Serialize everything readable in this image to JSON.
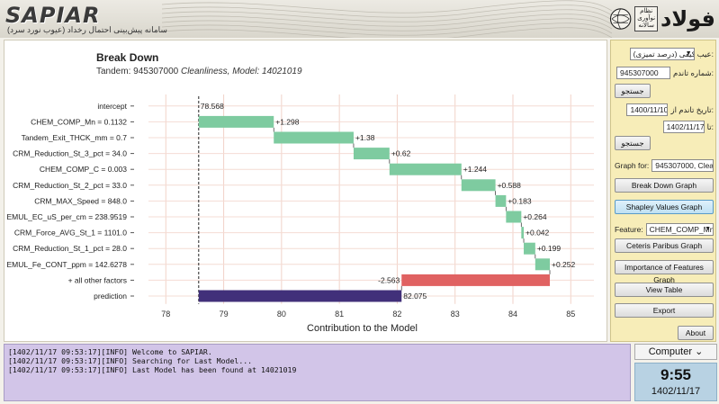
{
  "header": {
    "logo": "SAPIAR",
    "subtitle": "سامانه پیش‌بینی احتمال رخداد (عیوب نورد سرد)",
    "brand_tag": "نظام نوآوری سالانه",
    "brand_mark": "فولاد"
  },
  "chart_data": {
    "type": "waterfall-bar",
    "title": "Break Down",
    "subtitle_prefix": "Tandem: 945307000",
    "subtitle_italic": "Cleanliness, Model: 14021019",
    "xlabel": "Contribution to the Model",
    "xlim": [
      77.7,
      85.4
    ],
    "xticks": [
      78,
      79,
      80,
      81,
      82,
      83,
      84,
      85
    ],
    "intercept": 78.568,
    "colors": {
      "positive": "#7ecba0",
      "negative": "#e06262",
      "prediction": "#41307a"
    },
    "rows": [
      {
        "label": "intercept",
        "kind": "intercept",
        "value": 78.568,
        "text": "78.568"
      },
      {
        "label": "CHEM_COMP_Mn = 0.1132",
        "kind": "contrib",
        "value": 1.298,
        "text": "+1.298"
      },
      {
        "label": "Tandem_Exit_THCK_mm = 0.7",
        "kind": "contrib",
        "value": 1.38,
        "text": "+1.38"
      },
      {
        "label": "CRM_Reduction_St_3_pct = 34.0",
        "kind": "contrib",
        "value": 0.62,
        "text": "+0.62"
      },
      {
        "label": "CHEM_COMP_C = 0.003",
        "kind": "contrib",
        "value": 1.244,
        "text": "+1.244"
      },
      {
        "label": "CRM_Reduction_St_2_pct = 33.0",
        "kind": "contrib",
        "value": 0.588,
        "text": "+0.588"
      },
      {
        "label": "CRM_MAX_Speed = 848.0",
        "kind": "contrib",
        "value": 0.183,
        "text": "+0.183"
      },
      {
        "label": "EMUL_EC_uS_per_cm = 238.9519",
        "kind": "contrib",
        "value": 0.264,
        "text": "+0.264"
      },
      {
        "label": "CRM_Force_AVG_St_1 = 1101.0",
        "kind": "contrib",
        "value": 0.042,
        "text": "+0.042"
      },
      {
        "label": "CRM_Reduction_St_1_pct = 28.0",
        "kind": "contrib",
        "value": 0.199,
        "text": "+0.199"
      },
      {
        "label": "EMUL_Fe_CONT_ppm = 142.6278",
        "kind": "contrib",
        "value": 0.252,
        "text": "+0.252"
      },
      {
        "label": "+ all other factors",
        "kind": "contrib",
        "value": -2.563,
        "text": "-2.563"
      },
      {
        "label": "prediction",
        "kind": "prediction",
        "value": 82.075,
        "text": "82.075"
      }
    ]
  },
  "side": {
    "defect_label": "عیب:",
    "defect_value": "کیفی (درصد تمیزی)",
    "coil_label": "شماره تاندم:",
    "coil_value": "945307000",
    "search1": "جستجو",
    "date_from_label": "تاریخ تاندم از:",
    "date_from": "1400/11/10",
    "date_to_label": "تا:",
    "date_to": "1402/11/17",
    "search2": "جستجو",
    "graph_for_label": "Graph for:",
    "graph_for_value": "945307000, Clean...",
    "btn_breakdown": "Break Down Graph",
    "btn_shapley": "Shapley Values Graph",
    "feature_label": "Feature:",
    "feature_value": "CHEM_COMP_Mn",
    "btn_ceteris": "Ceteris Paribus Graph",
    "btn_importance": "Importance of Features Graph",
    "btn_view": "View Table",
    "btn_export": "Export",
    "btn_about": "About"
  },
  "log": {
    "lines": [
      "[1402/11/17 09:53:17][INFO] Welcome to SAPIAR.",
      "[1402/11/17 09:53:17][INFO] Searching for Last Model...",
      "[1402/11/17 09:53:17][INFO] Last Model has been found at 14021019"
    ]
  },
  "clock": {
    "computer_label": "Computer",
    "time": "9:55",
    "date": "1402/11/17"
  }
}
